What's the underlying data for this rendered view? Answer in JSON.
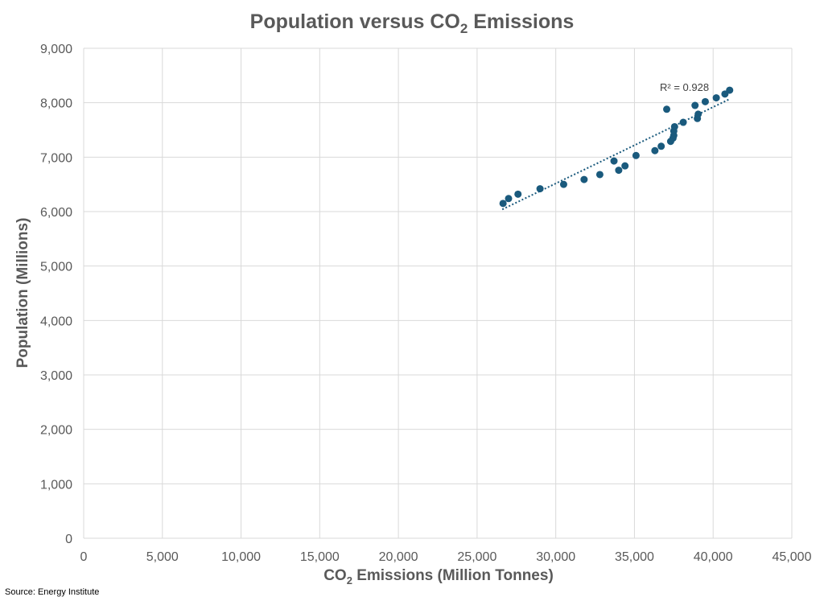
{
  "chart_data": {
    "type": "scatter",
    "title": {
      "prefix": "Population versus CO",
      "sub": "2",
      "suffix": " Emissions"
    },
    "xlabel": {
      "prefix": "CO",
      "sub": "2",
      "suffix": " Emissions (Million Tonnes)"
    },
    "ylabel": "Population (Millions)",
    "xlim": [
      0,
      45000
    ],
    "ylim": [
      0,
      9000
    ],
    "xticks": [
      0,
      5000,
      10000,
      15000,
      20000,
      25000,
      30000,
      35000,
      40000,
      45000
    ],
    "yticks": [
      0,
      1000,
      2000,
      3000,
      4000,
      5000,
      6000,
      7000,
      8000,
      9000
    ],
    "xtick_labels": [
      "0",
      "5,000",
      "10,000",
      "15,000",
      "20,000",
      "25,000",
      "30,000",
      "35,000",
      "40,000",
      "45,000"
    ],
    "ytick_labels": [
      "0",
      "1,000",
      "2,000",
      "3,000",
      "4,000",
      "5,000",
      "6,000",
      "7,000",
      "8,000",
      "9,000"
    ],
    "grid": true,
    "marker_color": "#1a5a7d",
    "trendline_color": "#1a5a7d",
    "series": [
      {
        "points": [
          [
            26650,
            6150
          ],
          [
            27000,
            6240
          ],
          [
            27600,
            6320
          ],
          [
            29000,
            6420
          ],
          [
            30500,
            6500
          ],
          [
            31800,
            6590
          ],
          [
            32800,
            6680
          ],
          [
            33700,
            6930
          ],
          [
            34000,
            6760
          ],
          [
            34400,
            6840
          ],
          [
            35100,
            7030
          ],
          [
            36300,
            7120
          ],
          [
            36700,
            7200
          ],
          [
            37300,
            7290
          ],
          [
            37450,
            7350
          ],
          [
            37500,
            7400
          ],
          [
            37500,
            7480
          ],
          [
            37550,
            7560
          ],
          [
            37050,
            7880
          ],
          [
            38100,
            7640
          ],
          [
            38850,
            7950
          ],
          [
            39000,
            7710
          ],
          [
            39050,
            7790
          ],
          [
            39500,
            8020
          ],
          [
            40200,
            8090
          ],
          [
            40750,
            8160
          ],
          [
            41050,
            8230
          ]
        ]
      }
    ],
    "trendline": {
      "x": [
        26600,
        41000
      ],
      "y": [
        6040,
        8060
      ]
    },
    "annotation": "R² = 0.928"
  },
  "source": "Source: Energy Institute"
}
